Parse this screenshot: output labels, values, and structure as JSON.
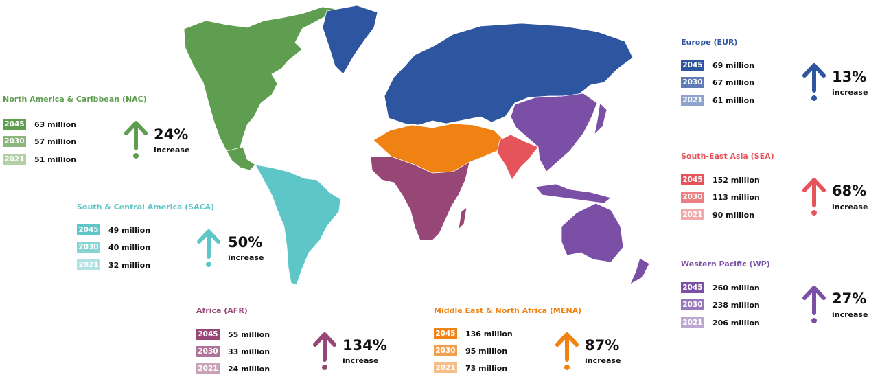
{
  "colors": {
    "nac": "#5f9e50",
    "saca": "#5ec6c6",
    "eur": "#2e55a0",
    "sea": "#e5545a",
    "mena": "#ef8212",
    "afr": "#974775",
    "wp": "#7a4fa5"
  },
  "icons": {
    "arrow": "up-arrow-icon"
  },
  "regions": {
    "nac": {
      "title": "North America & Caribbean (NAC)",
      "rows": [
        {
          "year": "2045",
          "value": "63 million"
        },
        {
          "year": "2030",
          "value": "57 million"
        },
        {
          "year": "2021",
          "value": "51 million"
        }
      ],
      "pct": "24%",
      "inc": "increase"
    },
    "saca": {
      "title": "South & Central America (SACA)",
      "rows": [
        {
          "year": "2045",
          "value": "49 million"
        },
        {
          "year": "2030",
          "value": "40 million"
        },
        {
          "year": "2021",
          "value": "32 million"
        }
      ],
      "pct": "50%",
      "inc": "increase"
    },
    "eur": {
      "title": "Europe (EUR)",
      "rows": [
        {
          "year": "2045",
          "value": "69 million"
        },
        {
          "year": "2030",
          "value": "67 million"
        },
        {
          "year": "2021",
          "value": "61 million"
        }
      ],
      "pct": "13%",
      "inc": "increase"
    },
    "sea": {
      "title": "South-East Asia (SEA)",
      "rows": [
        {
          "year": "2045",
          "value": "152 million"
        },
        {
          "year": "2030",
          "value": "113 million"
        },
        {
          "year": "2021",
          "value": "90 million"
        }
      ],
      "pct": "68%",
      "inc": "increase"
    },
    "wp": {
      "title": "Western Pacific (WP)",
      "rows": [
        {
          "year": "2045",
          "value": "260 million"
        },
        {
          "year": "2030",
          "value": "238 million"
        },
        {
          "year": "2021",
          "value": "206 million"
        }
      ],
      "pct": "27%",
      "inc": "increase"
    },
    "afr": {
      "title": "Africa (AFR)",
      "rows": [
        {
          "year": "2045",
          "value": "55 million"
        },
        {
          "year": "2030",
          "value": "33 million"
        },
        {
          "year": "2021",
          "value": "24 million"
        }
      ],
      "pct": "134%",
      "inc": "increase"
    },
    "mena": {
      "title": "Middle East & North Africa (MENA)",
      "rows": [
        {
          "year": "2045",
          "value": "136 million"
        },
        {
          "year": "2030",
          "value": "95 million"
        },
        {
          "year": "2021",
          "value": "73 million"
        }
      ],
      "pct": "87%",
      "inc": "increase"
    }
  }
}
